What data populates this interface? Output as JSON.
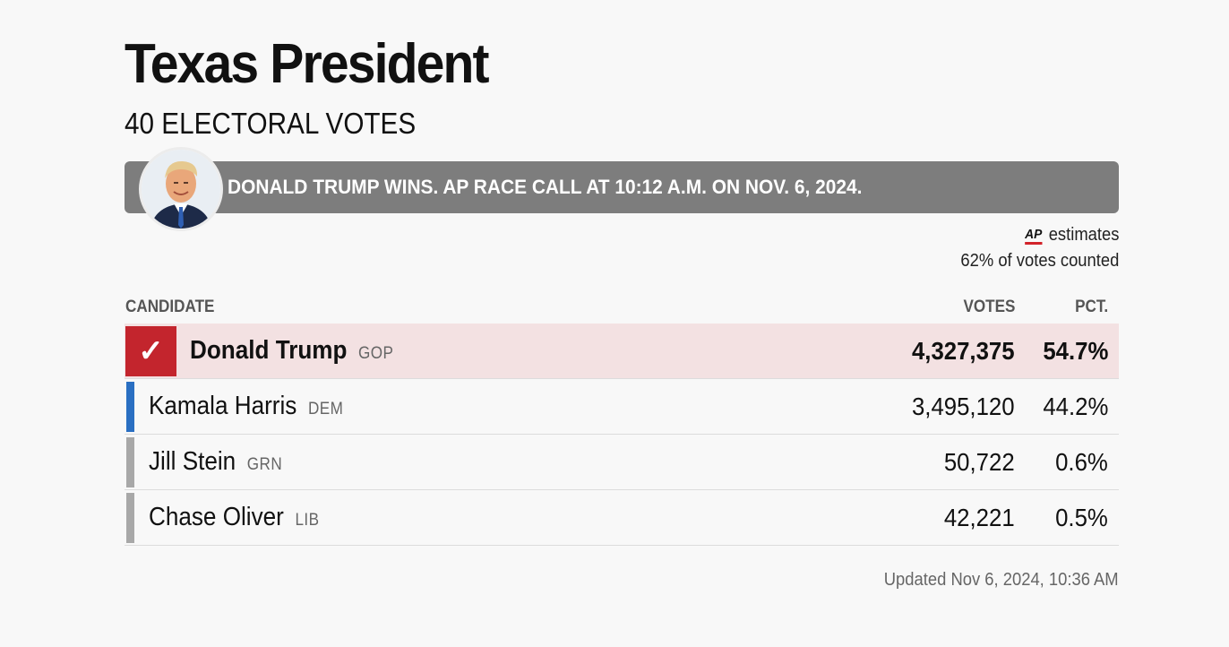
{
  "page": {
    "title": "Texas President",
    "subtitle": "40 ELECTORAL VOTES"
  },
  "banner": {
    "text": "DONALD TRUMP WINS. AP RACE CALL AT 10:12 A.M. ON NOV. 6, 2024.",
    "background": "#7d7d7d"
  },
  "estimates": {
    "logo": "AP",
    "label": "estimates",
    "counted": "62% of votes counted"
  },
  "table": {
    "headers": {
      "candidate": "CANDIDATE",
      "votes": "VOTES",
      "pct": "PCT."
    },
    "rows": [
      {
        "name": "Donald Trump",
        "party": "GOP",
        "votes": "4,327,375",
        "pct": "54.7%",
        "winner": true,
        "color": "#c3252d"
      },
      {
        "name": "Kamala Harris",
        "party": "DEM",
        "votes": "3,495,120",
        "pct": "44.2%",
        "winner": false,
        "color": "#2a6fc2"
      },
      {
        "name": "Jill Stein",
        "party": "GRN",
        "votes": "50,722",
        "pct": "0.6%",
        "winner": false,
        "color": "#a8a8a8"
      },
      {
        "name": "Chase Oliver",
        "party": "LIB",
        "votes": "42,221",
        "pct": "0.5%",
        "winner": false,
        "color": "#a8a8a8"
      }
    ]
  },
  "footer": {
    "updated": "Updated Nov 6, 2024, 10:36 AM"
  },
  "icons": {
    "check": "✓"
  }
}
